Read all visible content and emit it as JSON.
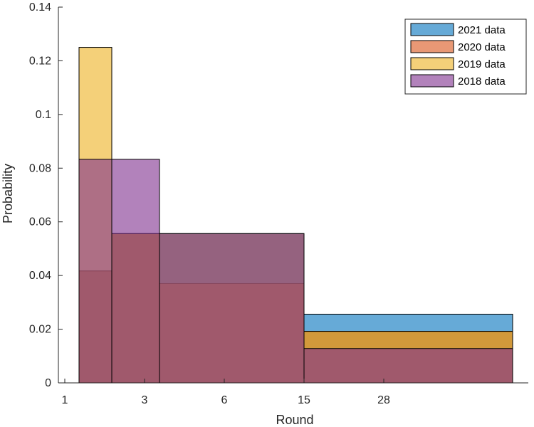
{
  "chart_data": {
    "type": "bar",
    "title": "",
    "xlabel": "Round",
    "ylabel": "Probability",
    "ylim": [
      0,
      0.14
    ],
    "yticks": [
      "0",
      "0.02",
      "0.04",
      "0.06",
      "0.08",
      "0.1",
      "0.12",
      "0.14"
    ],
    "xticks": [
      "1",
      "3",
      "6",
      "15",
      "28"
    ],
    "grid": false,
    "legend_position": "top-right",
    "bins": [
      {
        "label": "1",
        "from": 1,
        "to": 2
      },
      {
        "label": "3",
        "from": 2,
        "to": 3
      },
      {
        "label": "6",
        "from": 3,
        "to": 4
      },
      {
        "label": "15",
        "from": 4,
        "to": 5
      },
      {
        "label": "28",
        "from": 5,
        "to": 6
      }
    ],
    "series": [
      {
        "name": "2021 data",
        "color": "#0072BD",
        "values": [
          0.0417,
          0.0556,
          0.0556,
          0.0556,
          0.0256
        ]
      },
      {
        "name": "2020 data",
        "color": "#D95319",
        "values": [
          0.0417,
          0.0556,
          0.037,
          0.037,
          0.0192
        ]
      },
      {
        "name": "2019 data",
        "color": "#EDB120",
        "values": [
          0.125,
          0.0556,
          0.0556,
          0.0556,
          0.0192
        ]
      },
      {
        "name": "2018 data",
        "color": "#7E2F8E",
        "values": [
          0.0833,
          0.0833,
          0.0556,
          0.0556,
          0.0128
        ]
      }
    ]
  }
}
